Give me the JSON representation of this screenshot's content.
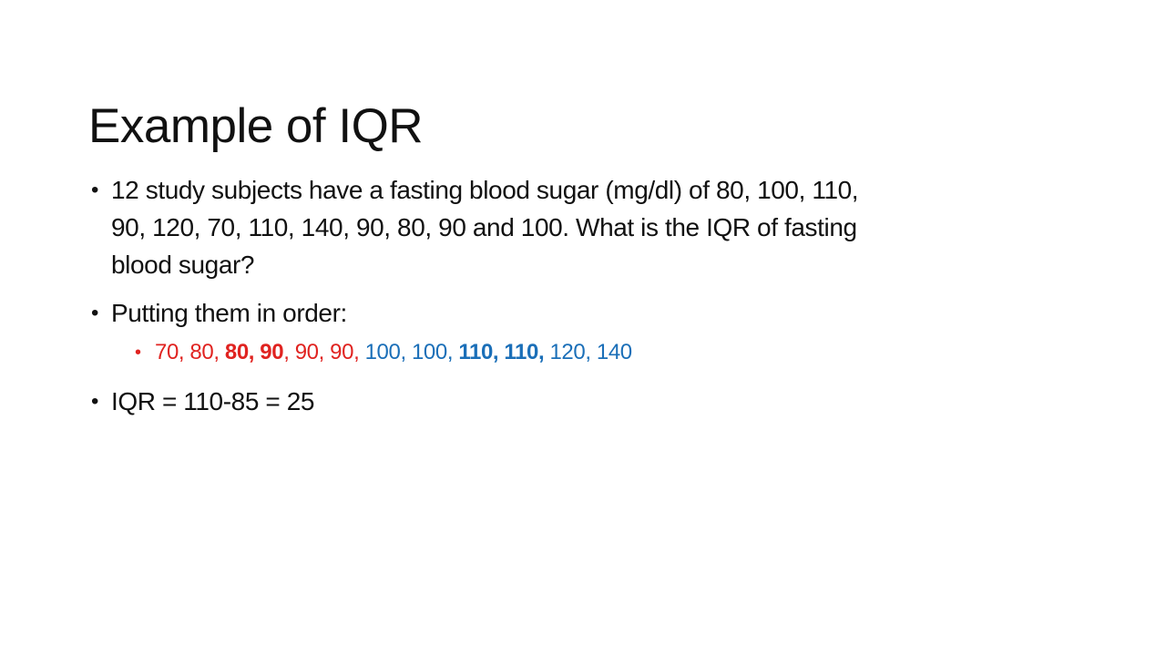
{
  "slide": {
    "title": "Example of IQR"
  },
  "colors": {
    "bg": "#ffffff",
    "text": "#111111",
    "red": "#e02320",
    "blue": "#1b6fb8"
  },
  "bullets": {
    "bullet_char": "•",
    "item1": {
      "level": 1,
      "text": "12 study subjects have a fasting blood sugar (mg/dl) of 80, 100, 110, 90, 120, 70, 110, 140, 90, 80, 90 and 100. What is the IQR of fasting blood sugar?",
      "lines": [
        "12 study subjects have a fasting blood sugar (mg/dl) of 80, 100, 110,",
        "90, 120, 70, 110, 140, 90, 80, 90 and 100. What is the IQR of fasting",
        "blood sugar?"
      ]
    },
    "item2": {
      "level": 1,
      "text": "Putting them in order:"
    },
    "item3": {
      "level": 2,
      "text": "70, 80, 80, 90, 90, 90, 100, 100, 110, 110, 120, 140",
      "segments": [
        {
          "text": "70, 80, ",
          "color": "red",
          "bold": false
        },
        {
          "text": "80, 90",
          "color": "red",
          "bold": true
        },
        {
          "text": ", 90, 90, ",
          "color": "red",
          "bold": false
        },
        {
          "text": "100, 100, ",
          "color": "blue",
          "bold": false
        },
        {
          "text": "110, 110,",
          "color": "blue",
          "bold": true
        },
        {
          "text": " 120, 140",
          "color": "blue",
          "bold": false
        }
      ]
    },
    "item4": {
      "level": 1,
      "text": "IQR = 110-85 = 25"
    }
  }
}
